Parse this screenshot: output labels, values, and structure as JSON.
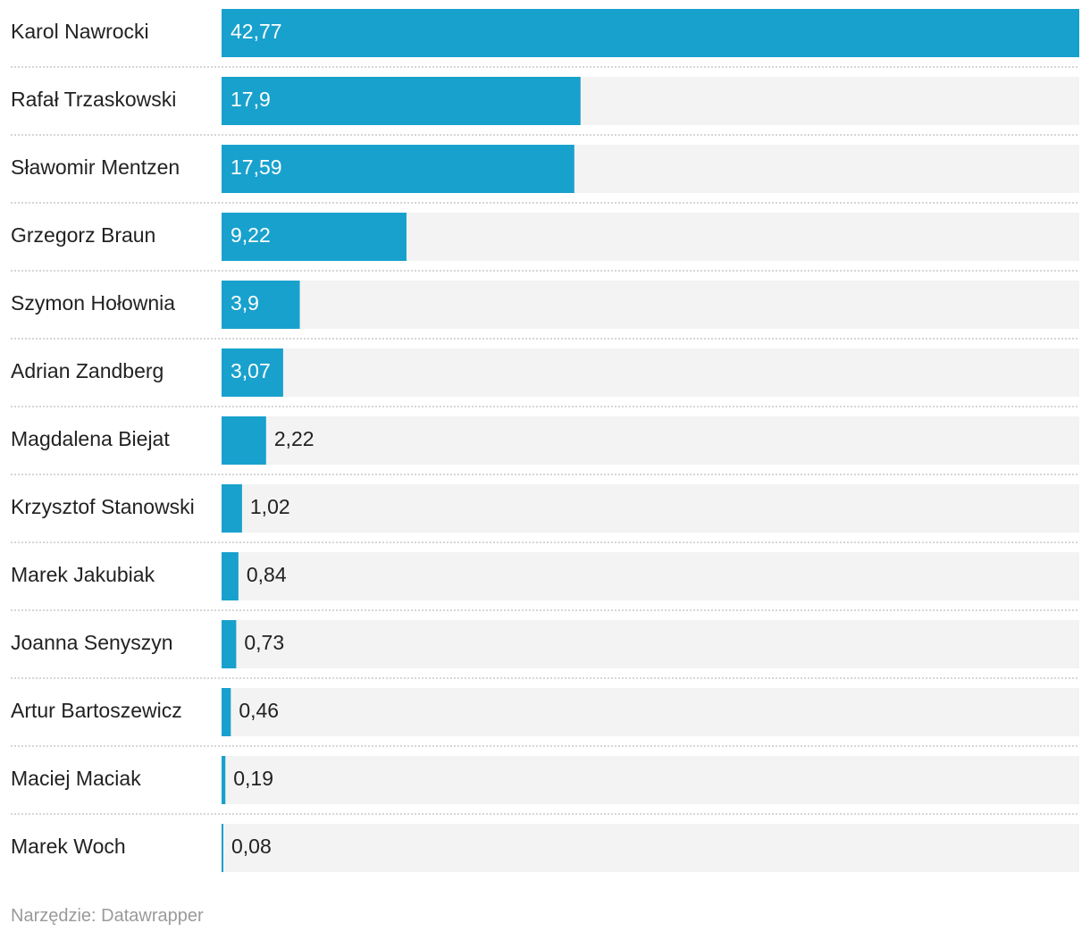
{
  "chart_data": {
    "type": "bar",
    "orientation": "horizontal",
    "categories": [
      "Karol Nawrocki",
      "Rafał Trzaskowski",
      "Sławomir Mentzen",
      "Grzegorz Braun",
      "Szymon Hołownia",
      "Adrian Zandberg",
      "Magdalena Biejat",
      "Krzysztof Stanowski",
      "Marek Jakubiak",
      "Joanna Senyszyn",
      "Artur Bartoszewicz",
      "Maciej Maciak",
      "Marek Woch"
    ],
    "values": [
      42.77,
      17.9,
      17.59,
      9.22,
      3.9,
      3.07,
      2.22,
      1.02,
      0.84,
      0.73,
      0.46,
      0.19,
      0.08
    ],
    "value_labels": [
      "42,77",
      "17,9",
      "17,59",
      "9,22",
      "3,9",
      "3,07",
      "2,22",
      "1,02",
      "0,84",
      "0,73",
      "0,46",
      "0,19",
      "0,08"
    ],
    "xlim": [
      0,
      42.77
    ],
    "grid": false,
    "legend": "none",
    "colors": {
      "bar": "#18a1cd",
      "track": "#f3f3f3",
      "separator": "#c8c8c8",
      "label_text": "#222222",
      "value_inside": "#ffffff",
      "value_outside": "#222222"
    }
  },
  "footer": {
    "credit": "Narzędzie: Datawrapper"
  }
}
